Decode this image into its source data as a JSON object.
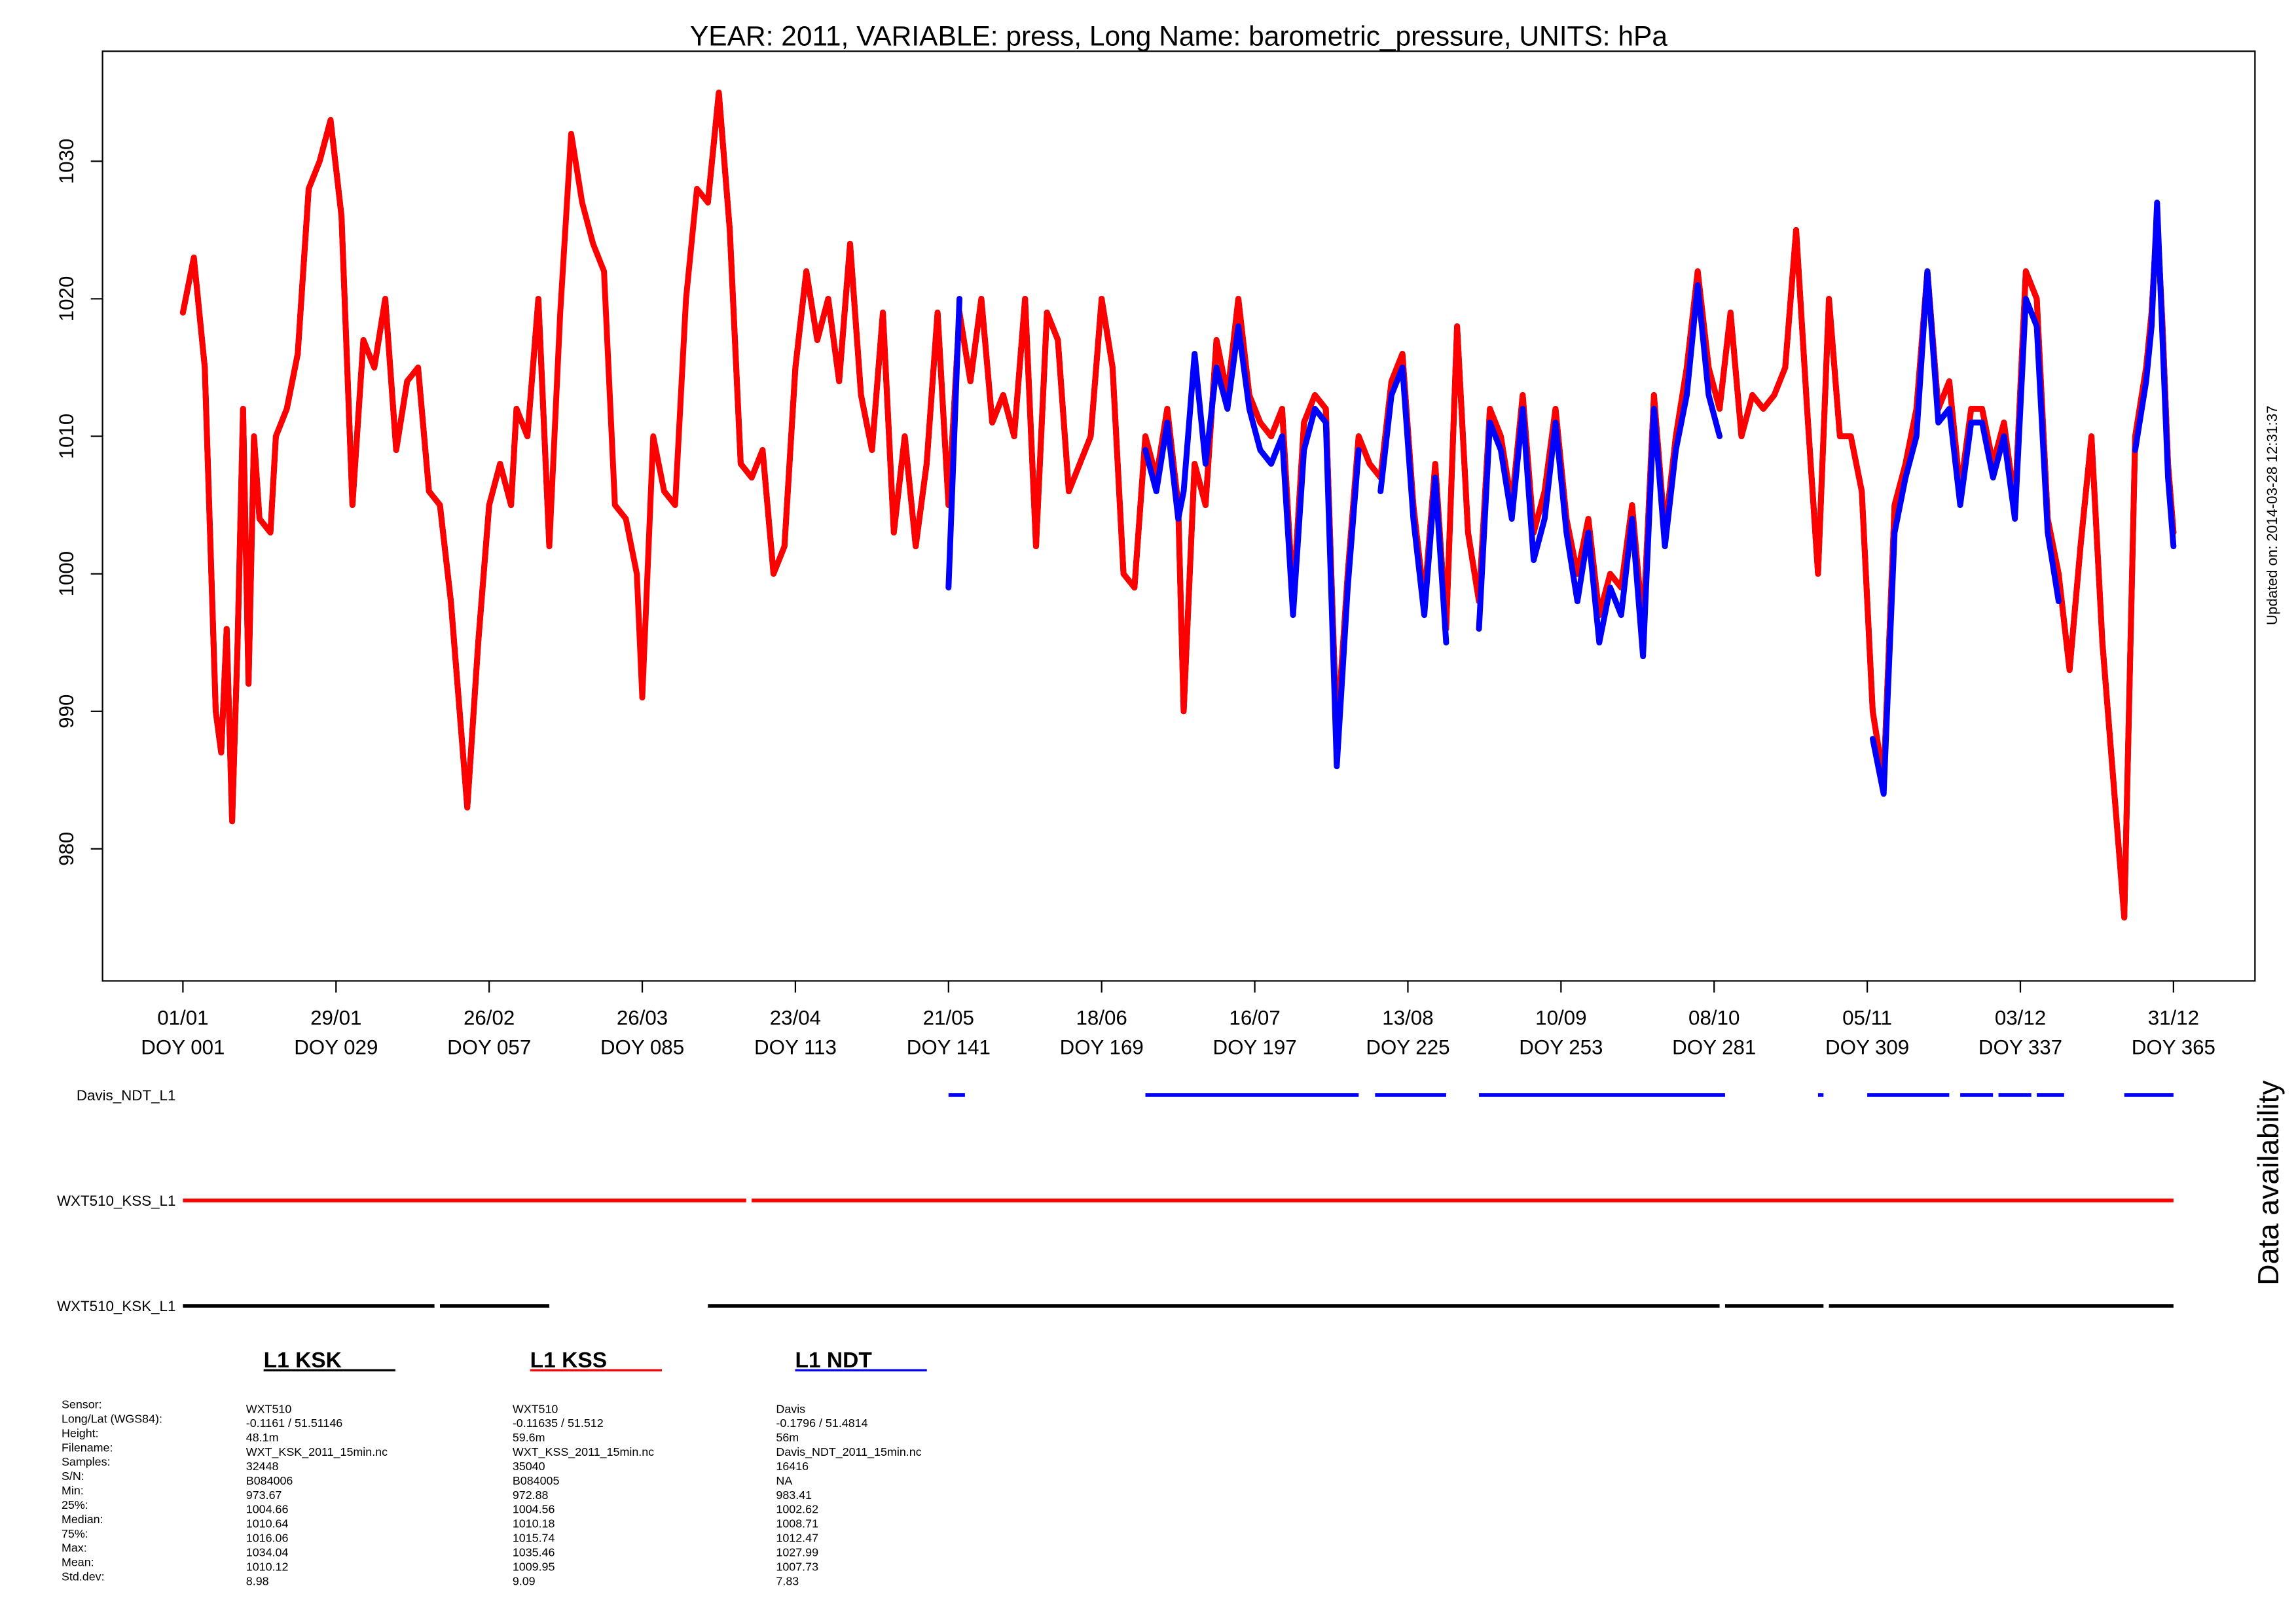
{
  "chart_data": {
    "type": "line",
    "title": "YEAR: 2011, VARIABLE: press, Long Name: barometric_pressure, UNITS: hPa",
    "annotation": "Updated on: 2014-03-28 12:31:37",
    "xlim": [
      -13.7,
      379.9
    ],
    "ylim": [
      970.4,
      1038
    ],
    "yticks": [
      980,
      990,
      1000,
      1010,
      1020,
      1030
    ],
    "xticks": [
      {
        "value": 1,
        "label": "01/01",
        "sublabel": "DOY 001"
      },
      {
        "value": 29,
        "label": "29/01",
        "sublabel": "DOY 029"
      },
      {
        "value": 57,
        "label": "26/02",
        "sublabel": "DOY 057"
      },
      {
        "value": 85,
        "label": "26/03",
        "sublabel": "DOY 085"
      },
      {
        "value": 113,
        "label": "23/04",
        "sublabel": "DOY 113"
      },
      {
        "value": 141,
        "label": "21/05",
        "sublabel": "DOY 141"
      },
      {
        "value": 169,
        "label": "18/06",
        "sublabel": "DOY 169"
      },
      {
        "value": 197,
        "label": "16/07",
        "sublabel": "DOY 197"
      },
      {
        "value": 225,
        "label": "13/08",
        "sublabel": "DOY 225"
      },
      {
        "value": 253,
        "label": "10/09",
        "sublabel": "DOY 253"
      },
      {
        "value": 281,
        "label": "08/10",
        "sublabel": "DOY 281"
      },
      {
        "value": 309,
        "label": "05/11",
        "sublabel": "DOY 309"
      },
      {
        "value": 337,
        "label": "03/12",
        "sublabel": "DOY 337"
      },
      {
        "value": 365,
        "label": "31/12",
        "sublabel": "DOY 365"
      }
    ],
    "x": [
      1,
      3,
      5,
      7,
      8,
      9,
      10,
      11,
      12,
      13,
      14,
      15,
      17,
      18,
      20,
      22,
      24,
      26,
      28,
      30,
      32,
      34,
      36,
      38,
      40,
      42,
      44,
      46,
      48,
      50,
      52,
      53,
      55,
      57,
      59,
      61,
      62,
      64,
      66,
      68,
      70,
      72,
      74,
      76,
      78,
      80,
      82,
      84,
      85,
      87,
      89,
      91,
      93,
      95,
      97,
      99,
      101,
      103,
      105,
      107,
      109,
      111,
      113,
      115,
      117,
      119,
      121,
      123,
      125,
      127,
      129,
      131,
      133,
      135,
      137,
      139,
      141,
      143,
      145,
      147,
      149,
      151,
      153,
      155,
      157,
      159,
      161,
      163,
      165,
      167,
      169,
      171,
      173,
      175,
      177,
      179,
      181,
      183,
      184,
      186,
      188,
      190,
      192,
      194,
      196,
      198,
      200,
      202,
      204,
      206,
      208,
      210,
      212,
      214,
      216,
      218,
      220,
      222,
      224,
      226,
      228,
      230,
      232,
      234,
      236,
      238,
      240,
      242,
      244,
      246,
      248,
      250,
      252,
      254,
      256,
      258,
      260,
      262,
      264,
      266,
      268,
      270,
      272,
      274,
      276,
      278,
      280,
      282,
      284,
      286,
      288,
      290,
      292,
      294,
      296,
      298,
      300,
      302,
      304,
      306,
      308,
      310,
      312,
      314,
      316,
      318,
      320,
      322,
      324,
      326,
      328,
      330,
      332,
      334,
      336,
      338,
      340,
      342,
      344,
      346,
      348,
      350,
      352,
      354,
      356,
      358,
      360,
      361,
      362,
      363,
      364,
      365
    ],
    "series": [
      {
        "name": "WXT510_KSK_L1",
        "color": "#000000",
        "values": [
          1019,
          1023,
          1015,
          990,
          987,
          996,
          982,
          995,
          1012,
          992,
          1010,
          1004,
          1003,
          1010,
          1012,
          1016,
          1028,
          1030,
          1033,
          1026,
          1005,
          1017,
          1015,
          1020,
          1009,
          1014,
          1015,
          1006,
          1005,
          998,
          988,
          983,
          995,
          1005,
          1008,
          1005,
          1012,
          1010,
          1020,
          1002,
          null,
          null,
          null,
          null,
          null,
          null,
          null,
          null,
          null,
          null,
          null,
          null,
          null,
          null,
          1027,
          1035,
          1025,
          1008,
          1007,
          1009,
          1000,
          1002,
          1015,
          1022,
          1017,
          1020,
          1014,
          1024,
          1013,
          1009,
          1019,
          1003,
          1010,
          1002,
          1008,
          1019,
          1005,
          1019,
          1014,
          1020,
          1011,
          1013,
          1010,
          1020,
          1002,
          1019,
          1017,
          1006,
          1008,
          1010,
          1020,
          1015,
          1000,
          999,
          1010,
          1007,
          1012,
          1005,
          990,
          1008,
          1005,
          1017,
          1013,
          1020,
          1013,
          1011,
          1010,
          1012,
          998,
          1011,
          1013,
          1012,
          988,
          1000,
          1010,
          1008,
          1007,
          1014,
          1016,
          1005,
          998,
          1008,
          996,
          1018,
          1003,
          998,
          1012,
          1010,
          1005,
          1013,
          1003,
          1006,
          1012,
          1004,
          1000,
          1004,
          997,
          1000,
          999,
          1005,
          996,
          1013,
          1003,
          1010,
          1015,
          1022,
          1015,
          1012,
          1019,
          1010,
          1013,
          1012,
          1013,
          1015,
          1025,
          1012,
          1000,
          1020,
          1010,
          1010,
          1006,
          990,
          985,
          1005,
          1008,
          1012,
          1022,
          1012,
          1014,
          1006,
          1012,
          1012,
          1008,
          1011,
          1005,
          1022,
          1020,
          1004,
          1000,
          993,
          1002,
          1010,
          995,
          985,
          975,
          1010,
          1015,
          1019,
          1026,
          1018,
          1008,
          1003
        ]
      },
      {
        "name": "WXT510_KSS_L1",
        "color": "#ff0000",
        "values": [
          1019,
          1023,
          1015,
          990,
          987,
          996,
          982,
          995,
          1012,
          992,
          1010,
          1004,
          1003,
          1010,
          1012,
          1016,
          1028,
          1030,
          1033,
          1026,
          1005,
          1017,
          1015,
          1020,
          1009,
          1014,
          1015,
          1006,
          1005,
          998,
          988,
          983,
          995,
          1005,
          1008,
          1005,
          1012,
          1010,
          1020,
          1002,
          1019,
          1032,
          1027,
          1024,
          1022,
          1005,
          1004,
          1000,
          991,
          1010,
          1006,
          1005,
          1020,
          1028,
          1027,
          1035,
          1025,
          1008,
          1007,
          1009,
          1000,
          1002,
          1015,
          1022,
          1017,
          1020,
          1014,
          1024,
          1013,
          1009,
          1019,
          1003,
          1010,
          1002,
          1008,
          1019,
          1005,
          1019,
          1014,
          1020,
          1011,
          1013,
          1010,
          1020,
          1002,
          1019,
          1017,
          1006,
          1008,
          1010,
          1020,
          1015,
          1000,
          999,
          1010,
          1007,
          1012,
          1005,
          990,
          1008,
          1005,
          1017,
          1013,
          1020,
          1013,
          1011,
          1010,
          1012,
          998,
          1011,
          1013,
          1012,
          988,
          1000,
          1010,
          1008,
          1007,
          1014,
          1016,
          1005,
          998,
          1008,
          996,
          1018,
          1003,
          998,
          1012,
          1010,
          1005,
          1013,
          1003,
          1006,
          1012,
          1004,
          1000,
          1004,
          997,
          1000,
          999,
          1005,
          996,
          1013,
          1003,
          1010,
          1015,
          1022,
          1015,
          1012,
          1019,
          1010,
          1013,
          1012,
          1013,
          1015,
          1025,
          1012,
          1000,
          1020,
          1010,
          1010,
          1006,
          990,
          985,
          1005,
          1008,
          1012,
          1022,
          1012,
          1014,
          1006,
          1012,
          1012,
          1008,
          1011,
          1005,
          1022,
          1020,
          1004,
          1000,
          993,
          1002,
          1010,
          995,
          985,
          975,
          1010,
          1015,
          1019,
          1026,
          1018,
          1008,
          1003
        ]
      },
      {
        "name": "Davis_NDT_L1",
        "color": "#0000ff",
        "values": [
          null,
          null,
          null,
          null,
          null,
          null,
          null,
          null,
          null,
          null,
          null,
          null,
          null,
          null,
          null,
          null,
          null,
          null,
          null,
          null,
          null,
          null,
          null,
          null,
          null,
          null,
          null,
          null,
          null,
          null,
          null,
          null,
          null,
          null,
          null,
          null,
          null,
          null,
          null,
          null,
          null,
          null,
          null,
          null,
          null,
          null,
          null,
          null,
          null,
          null,
          null,
          null,
          null,
          null,
          null,
          null,
          null,
          null,
          null,
          null,
          null,
          null,
          null,
          null,
          null,
          null,
          null,
          null,
          null,
          null,
          null,
          null,
          null,
          null,
          null,
          null,
          999,
          1020,
          null,
          null,
          null,
          null,
          null,
          null,
          null,
          null,
          null,
          null,
          null,
          null,
          null,
          null,
          null,
          null,
          1009,
          1006,
          1011,
          1004,
          1006,
          1016,
          1008,
          1015,
          1012,
          1018,
          1012,
          1009,
          1008,
          1010,
          997,
          1009,
          1012,
          1011,
          986,
          999,
          1009,
          null,
          1006,
          1013,
          1015,
          1004,
          997,
          1007,
          995,
          null,
          null,
          996,
          1011,
          1009,
          1004,
          1012,
          1001,
          1004,
          1011,
          1003,
          998,
          1003,
          995,
          999,
          997,
          1004,
          994,
          1012,
          1002,
          1009,
          1013,
          1021,
          1013,
          1010,
          null,
          null,
          null,
          null,
          null,
          null,
          null,
          null,
          null,
          null,
          null,
          null,
          null,
          988,
          984,
          1003,
          1007,
          1010,
          1022,
          1011,
          1012,
          1005,
          1011,
          1011,
          1007,
          1010,
          1004,
          1020,
          1018,
          1003,
          998,
          null,
          null,
          null,
          null,
          null,
          null,
          1009,
          1014,
          1018,
          1027,
          1017,
          1007,
          1002
        ]
      }
    ],
    "availability": {
      "title": "Data availability",
      "rows": [
        {
          "name": "Davis_NDT_L1",
          "color": "#0000ff",
          "segments": [
            [
              141,
              144
            ],
            [
              177,
              216
            ],
            [
              219,
              232
            ],
            [
              238,
              283
            ],
            [
              300,
              301
            ],
            [
              309,
              324
            ],
            [
              326,
              332
            ],
            [
              333,
              339
            ],
            [
              340,
              345
            ],
            [
              356,
              365
            ]
          ]
        },
        {
          "name": "WXT510_KSS_L1",
          "color": "#ff0000",
          "segments": [
            [
              1,
              104
            ],
            [
              105,
              365
            ]
          ]
        },
        {
          "name": "WXT510_KSK_L1",
          "color": "#000000",
          "segments": [
            [
              1,
              47
            ],
            [
              48,
              68
            ],
            [
              97,
              282
            ],
            [
              283,
              301
            ],
            [
              302,
              365
            ]
          ]
        }
      ]
    },
    "stat_labels": [
      "Sensor:",
      "Long/Lat (WGS84):",
      "Height:",
      "Filename:",
      "Samples:",
      "S/N:",
      "Min:",
      "25%:",
      "Median:",
      "75%:",
      "Max:",
      "Mean:",
      "Std.dev:"
    ],
    "stations": [
      {
        "heading": "L1 KSK",
        "color": "#000000",
        "values": [
          "WXT510",
          "-0.1161 / 51.51146",
          "48.1m",
          "WXT_KSK_2011_15min.nc",
          "32448",
          "B084006",
          "973.67",
          "1004.66",
          "1010.64",
          "1016.06",
          "1034.04",
          "1010.12",
          "8.98"
        ]
      },
      {
        "heading": "L1 KSS",
        "color": "#ff0000",
        "values": [
          "WXT510",
          "-0.11635 / 51.512",
          "59.6m",
          "WXT_KSS_2011_15min.nc",
          "35040",
          "B084005",
          "972.88",
          "1004.56",
          "1010.18",
          "1015.74",
          "1035.46",
          "1009.95",
          "9.09"
        ]
      },
      {
        "heading": "L1 NDT",
        "color": "#0000ff",
        "values": [
          "Davis",
          "-0.1796 / 51.4814",
          "56m",
          "Davis_NDT_2011_15min.nc",
          "16416",
          "NA",
          "983.41",
          "1002.62",
          "1008.71",
          "1012.47",
          "1027.99",
          "1007.73",
          "7.83"
        ]
      }
    ]
  }
}
